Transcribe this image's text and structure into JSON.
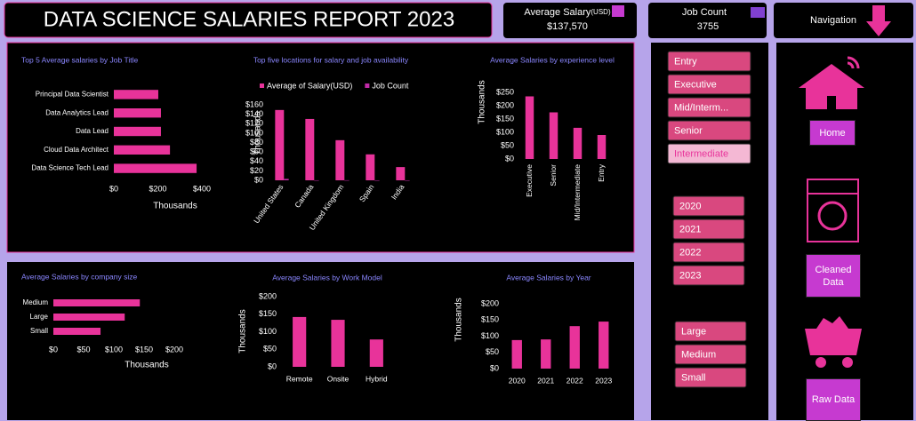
{
  "header": {
    "title": "DATA SCIENCE SALARIES REPORT 2023"
  },
  "kpis": [
    {
      "label": "Average Salary",
      "unit": "(USD)",
      "value": "$137,570"
    },
    {
      "label": "Job Count",
      "value": 3755
    }
  ],
  "navigation": {
    "title": "Navigation",
    "buttons": [
      "Home",
      "Cleaned Data",
      "Raw Data"
    ]
  },
  "slicers": [
    {
      "items": [
        "Entry",
        "Executive",
        "Mid/Interm...",
        "Senior",
        "Intermediate"
      ],
      "selected": 4
    },
    {
      "items": [
        "2020",
        "2021",
        "2022",
        "2023"
      ]
    },
    {
      "items": [
        "Large",
        "Medium",
        "Small"
      ]
    }
  ],
  "chart_data": [
    {
      "type": "bar",
      "horizontal": true,
      "title": "Top 5 Average salaries by Job Title",
      "xlabel": "Thousands",
      "categories": [
        "Principal Data Scientist",
        "Data Analytics Lead",
        "Data Lead",
        "Cloud Data Architect",
        "Data Science Tech Lead"
      ],
      "series": [
        {
          "color": "#e8339a",
          "values": [
            202,
            214,
            214,
            255,
            376
          ]
        }
      ],
      "xlim": [
        0,
        400
      ],
      "xticks": [
        {
          "value": 0,
          "label": "$0"
        },
        {
          "value": 200,
          "label": "$200"
        },
        {
          "value": 400,
          "label": "$400"
        }
      ],
      "grid": false
    },
    {
      "type": "bar",
      "title": "Top five locations for salary and job availability",
      "ylabel": "Thousands",
      "categories": [
        "United States",
        "Canada",
        "United Kingdom",
        "Spain",
        "India"
      ],
      "series": [
        {
          "name": "Average of Salary(USD)",
          "color": "#e8339a",
          "values": [
            149,
            130,
            85,
            55,
            28
          ]
        },
        {
          "name": "Job Count",
          "color": "#c12aa8",
          "values": [
            3,
            0.1,
            0.2,
            0.05,
            0.05
          ]
        }
      ],
      "ylim": [
        0,
        160
      ],
      "yticks": [
        {
          "value": 0,
          "label": "$0"
        },
        {
          "value": 20,
          "label": "$20"
        },
        {
          "value": 40,
          "label": "$40"
        },
        {
          "value": 60,
          "label": "$60"
        },
        {
          "value": 80,
          "label": "$80"
        },
        {
          "value": 100,
          "label": "$100"
        },
        {
          "value": 120,
          "label": "$120"
        },
        {
          "value": 140,
          "label": "$140"
        },
        {
          "value": 160,
          "label": "$160"
        }
      ],
      "legend": "top",
      "grid": false
    },
    {
      "type": "bar",
      "title": "Average Salaries by experience level",
      "ylabel": "Thousands",
      "categories": [
        "Executive",
        "Senior",
        "Mid/Intermediate",
        "Entry"
      ],
      "series": [
        {
          "color": "#e8339a",
          "values": [
            235,
            175,
            117,
            90
          ]
        }
      ],
      "ylim": [
        0,
        250
      ],
      "yticks": [
        {
          "value": 0,
          "label": "$0"
        },
        {
          "value": 50,
          "label": "$50"
        },
        {
          "value": 100,
          "label": "$100"
        },
        {
          "value": 150,
          "label": "$150"
        },
        {
          "value": 200,
          "label": "$200"
        },
        {
          "value": 250,
          "label": "$250"
        }
      ],
      "grid": false
    },
    {
      "type": "bar",
      "horizontal": true,
      "title": "Average Salaries by company size",
      "xlabel": "Thousands",
      "categories": [
        "Medium",
        "Large",
        "Small"
      ],
      "series": [
        {
          "color": "#e8339a",
          "values": [
            143,
            118,
            78
          ]
        }
      ],
      "xlim": [
        0,
        200
      ],
      "xticks": [
        {
          "value": 0,
          "label": "$0"
        },
        {
          "value": 50,
          "label": "$50"
        },
        {
          "value": 100,
          "label": "$100"
        },
        {
          "value": 150,
          "label": "$150"
        },
        {
          "value": 200,
          "label": "$200"
        }
      ],
      "grid": false
    },
    {
      "type": "bar",
      "title": "Average Salaries by Work Model",
      "ylabel": "Thousands",
      "categories": [
        "Remote",
        "Onsite",
        "Hybrid"
      ],
      "series": [
        {
          "color": "#e8339a",
          "values": [
            142,
            134,
            78
          ]
        }
      ],
      "ylim": [
        0,
        200
      ],
      "yticks": [
        {
          "value": 0,
          "label": "$0"
        },
        {
          "value": 50,
          "label": "$50"
        },
        {
          "value": 100,
          "label": "$100"
        },
        {
          "value": 150,
          "label": "$150"
        },
        {
          "value": 200,
          "label": "$200"
        }
      ],
      "grid": false
    },
    {
      "type": "bar",
      "title": "Average Salaries by Year",
      "ylabel": "Thousands",
      "categories": [
        "2020",
        "2021",
        "2022",
        "2023"
      ],
      "series": [
        {
          "color": "#e8339a",
          "values": [
            88,
            90,
            131,
            145
          ]
        }
      ],
      "ylim": [
        0,
        200
      ],
      "yticks": [
        {
          "value": 0,
          "label": "$0"
        },
        {
          "value": 50,
          "label": "$50"
        },
        {
          "value": 100,
          "label": "$100"
        },
        {
          "value": 150,
          "label": "$150"
        },
        {
          "value": 200,
          "label": "$200"
        }
      ],
      "grid": false
    }
  ]
}
